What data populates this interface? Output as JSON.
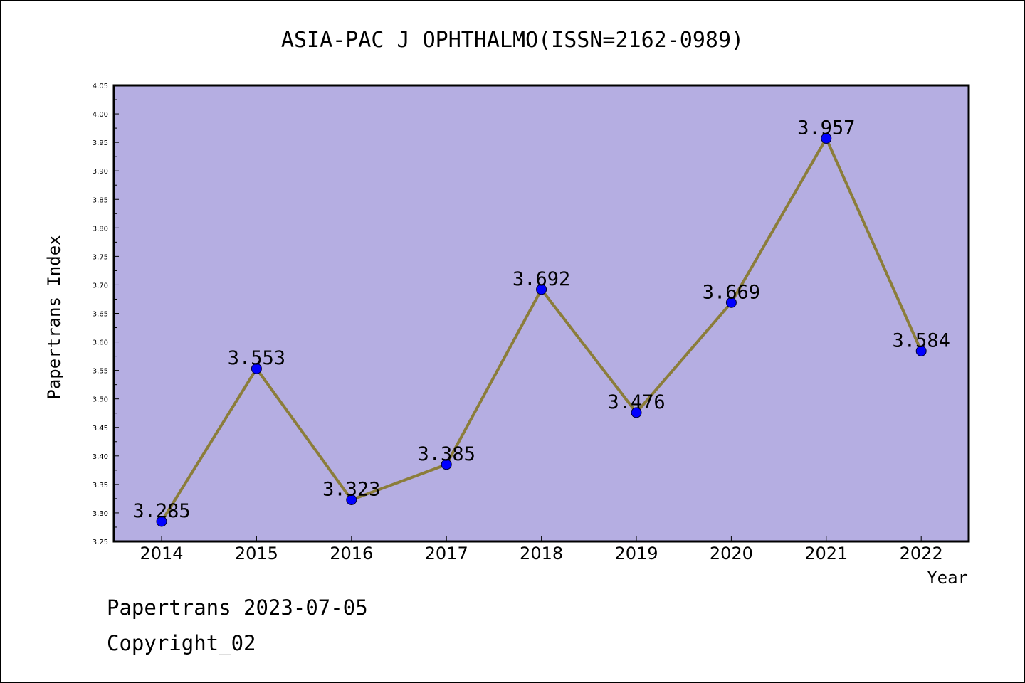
{
  "chart_data": {
    "type": "line",
    "title": "ASIA-PAC J OPHTHALMO(ISSN=2162-0989)",
    "xlabel": "Year",
    "ylabel": "Papertrans Index",
    "categories": [
      "2014",
      "2015",
      "2016",
      "2017",
      "2018",
      "2019",
      "2020",
      "2021",
      "2022"
    ],
    "values": [
      3.285,
      3.553,
      3.323,
      3.385,
      3.692,
      3.476,
      3.669,
      3.957,
      3.584
    ],
    "data_labels": [
      "3.285",
      "3.553",
      "3.323",
      "3.385",
      "3.692",
      "3.476",
      "3.669",
      "3.957",
      "3.584"
    ],
    "ylim": [
      3.25,
      4.05
    ],
    "yticks": [
      "3.25",
      "3.30",
      "3.35",
      "3.40",
      "3.45",
      "3.50",
      "3.55",
      "3.60",
      "3.65",
      "3.70",
      "3.75",
      "3.80",
      "3.85",
      "3.90",
      "3.95",
      "4.00",
      "4.05"
    ],
    "grid": false,
    "colors": {
      "plot_background": "#b5aee2",
      "line": "#8b7d3a",
      "marker": "#0000ff",
      "axes": "#000000"
    }
  },
  "footer": {
    "line1": "Papertrans 2023-07-05",
    "line2": "Copyright_02"
  }
}
